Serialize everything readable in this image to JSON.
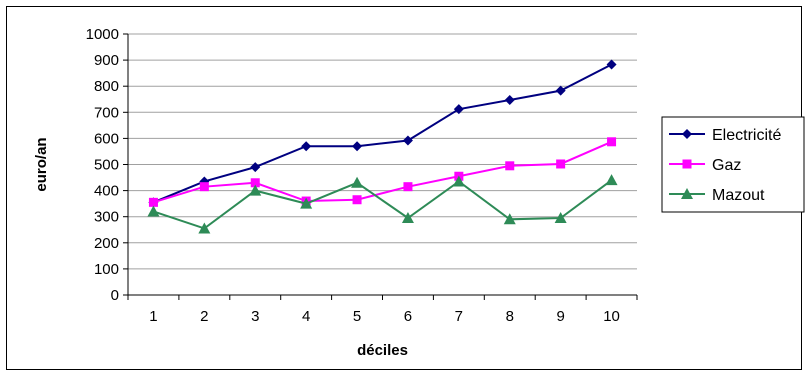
{
  "chart_data": {
    "type": "line",
    "title": "",
    "xlabel": "déciles",
    "ylabel": "euro/an",
    "categories": [
      "1",
      "2",
      "3",
      "4",
      "5",
      "6",
      "7",
      "8",
      "9",
      "10"
    ],
    "ylim": [
      0,
      1000
    ],
    "yticks": [
      "0",
      "100",
      "200",
      "300",
      "400",
      "500",
      "600",
      "700",
      "800",
      "900",
      "1000"
    ],
    "grid": "horizontal",
    "legend_position": "right",
    "series": [
      {
        "name": "Electricité",
        "color": "#000080",
        "marker": "diamond",
        "values": [
          355,
          435,
          490,
          570,
          570,
          592,
          712,
          747,
          783,
          883
        ]
      },
      {
        "name": "Gaz",
        "color": "#ff00ff",
        "marker": "square",
        "values": [
          355,
          415,
          430,
          360,
          365,
          415,
          455,
          495,
          502,
          587
        ]
      },
      {
        "name": "Mazout",
        "color": "#2e8b57",
        "marker": "triangle",
        "values": [
          320,
          255,
          400,
          350,
          430,
          295,
          435,
          290,
          295,
          440
        ]
      }
    ]
  }
}
